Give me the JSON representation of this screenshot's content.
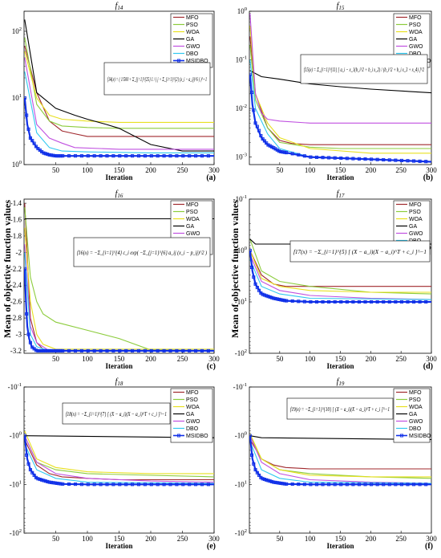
{
  "figure": {
    "ylabel": "Mean of objective function values",
    "xlabel": "Iteration",
    "algorithms": [
      "MFO",
      "PSO",
      "WOA",
      "GA",
      "GWO",
      "DBO",
      "MSIDBO"
    ],
    "colors": {
      "MFO": "#a0282d",
      "PSO": "#8ccc3c",
      "WOA": "#e8e020",
      "GA": "#000000",
      "GWO": "#c050e0",
      "DBO": "#30c8f0",
      "MSIDBO": "#1030e8"
    }
  },
  "chart_data": [
    {
      "type": "line",
      "title": "f14",
      "panel_label": "(a)",
      "formula": "f14(x) = ( 1/500 + Σ_{j=1}^{25} 1 / ( j + Σ_{i=1}^{2} (x_i − a_ij)^6 ) )^−1",
      "yscale": "log",
      "xlim": [
        0,
        300
      ],
      "ylim": [
        1,
        200
      ],
      "x_ticks": [
        "50",
        "100",
        "150",
        "200",
        "250",
        "300"
      ],
      "y_ticks": [
        "10^0",
        "10^1",
        "10^2"
      ],
      "legend": "top-right",
      "series": [
        {
          "name": "MFO",
          "x": [
            1,
            20,
            40,
            60,
            80,
            100,
            300
          ],
          "y": [
            60,
            12,
            4.5,
            3.2,
            2.9,
            2.65,
            2.65
          ]
        },
        {
          "name": "PSO",
          "x": [
            1,
            20,
            40,
            60,
            100,
            150,
            300
          ],
          "y": [
            80,
            8,
            4.5,
            3.8,
            3.6,
            3.5,
            3.5
          ]
        },
        {
          "name": "WOA",
          "x": [
            1,
            20,
            40,
            60,
            100,
            150,
            300
          ],
          "y": [
            50,
            10,
            5.5,
            4.8,
            4.5,
            4.3,
            4.3
          ]
        },
        {
          "name": "GA",
          "x": [
            1,
            20,
            50,
            80,
            100,
            130,
            150,
            200,
            250,
            300
          ],
          "y": [
            150,
            12,
            7,
            5.5,
            4.8,
            4,
            3.5,
            2,
            1.6,
            1.6
          ]
        },
        {
          "name": "GWO",
          "x": [
            1,
            20,
            40,
            60,
            80,
            150,
            300
          ],
          "y": [
            40,
            4,
            2.5,
            2.1,
            1.8,
            1.7,
            1.7
          ]
        },
        {
          "name": "DBO",
          "x": [
            1,
            20,
            40,
            60,
            100,
            200,
            300
          ],
          "y": [
            25,
            3,
            1.8,
            1.6,
            1.55,
            1.5,
            1.5
          ]
        },
        {
          "name": "MSIDBO",
          "x": [
            1,
            5,
            10,
            20,
            30,
            40,
            50,
            300
          ],
          "y": [
            10,
            4,
            2.5,
            1.8,
            1.5,
            1.4,
            1.35,
            1.35
          ]
        }
      ]
    },
    {
      "type": "line",
      "title": "f15",
      "panel_label": "(b)",
      "formula": "f15(x) = Σ_{i=1}^{11} [ a_i − x_1(b_i^2 + b_i x_2) / (b_i^2 + b_i x_3 + x_4) ]^2",
      "yscale": "log",
      "xlim": [
        0,
        300
      ],
      "ylim": [
        0.0007,
        1
      ],
      "x_ticks": [
        "50",
        "100",
        "150",
        "200",
        "250",
        "300"
      ],
      "y_ticks": [
        "10^-3",
        "10^-2",
        "10^-1",
        "10^0"
      ],
      "legend": "top-right",
      "series": [
        {
          "name": "MFO",
          "x": [
            1,
            10,
            30,
            50,
            70,
            100,
            300
          ],
          "y": [
            0.3,
            0.02,
            0.004,
            0.0022,
            0.0019,
            0.0018,
            0.0018
          ]
        },
        {
          "name": "PSO",
          "x": [
            1,
            10,
            30,
            50,
            100,
            150,
            300
          ],
          "y": [
            0.2,
            0.015,
            0.004,
            0.002,
            0.0016,
            0.0015,
            0.0015
          ]
        },
        {
          "name": "WOA",
          "x": [
            1,
            10,
            30,
            50,
            100,
            200,
            300
          ],
          "y": [
            0.5,
            0.02,
            0.005,
            0.0025,
            0.0015,
            0.0012,
            0.0012
          ]
        },
        {
          "name": "GA",
          "x": [
            1,
            20,
            50,
            100,
            150,
            200,
            300
          ],
          "y": [
            0.06,
            0.045,
            0.04,
            0.032,
            0.028,
            0.025,
            0.021
          ]
        },
        {
          "name": "GWO",
          "x": [
            1,
            10,
            20,
            30,
            50,
            100,
            300
          ],
          "y": [
            0.9,
            0.02,
            0.008,
            0.006,
            0.0055,
            0.005,
            0.005
          ]
        },
        {
          "name": "DBO",
          "x": [
            1,
            10,
            30,
            50,
            100,
            200,
            300
          ],
          "y": [
            0.1,
            0.01,
            0.003,
            0.0015,
            0.001,
            0.0009,
            0.0008
          ]
        },
        {
          "name": "MSIDBO",
          "x": [
            1,
            5,
            10,
            20,
            30,
            50,
            100,
            200,
            300
          ],
          "y": [
            0.05,
            0.012,
            0.005,
            0.0025,
            0.0018,
            0.0013,
            0.001,
            0.0009,
            0.0008
          ]
        }
      ]
    },
    {
      "type": "line",
      "title": "f16",
      "panel_label": "(c)",
      "formula": "f16(x) = −Σ_{i=1}^{4} c_i exp( −Σ_{j=1}^{6} a_ij (x_i − p_ij)^2 )",
      "yscale": "linear",
      "xlim": [
        0,
        300
      ],
      "ylim": [
        -3.23,
        -1.35
      ],
      "x_ticks": [
        "50",
        "100",
        "150",
        "200",
        "250",
        "300"
      ],
      "y_ticks": [
        "-1.4",
        "-1.6",
        "-1.8",
        "-2",
        "-2.2",
        "-2.4",
        "-2.6",
        "-2.8",
        "-3",
        "-3.2"
      ],
      "legend": "top-right",
      "series": [
        {
          "name": "MFO",
          "x": [
            1,
            10,
            20,
            30,
            50,
            300
          ],
          "y": [
            -1.4,
            -2.8,
            -3.1,
            -3.18,
            -3.2,
            -3.2
          ]
        },
        {
          "name": "PSO",
          "x": [
            1,
            10,
            20,
            30,
            50,
            100,
            150,
            200,
            300
          ],
          "y": [
            -1.45,
            -2.3,
            -2.6,
            -2.75,
            -2.85,
            -2.95,
            -3.05,
            -3.19,
            -3.2
          ]
        },
        {
          "name": "WOA",
          "x": [
            1,
            10,
            20,
            30,
            50,
            300
          ],
          "y": [
            -1.7,
            -2.6,
            -3.0,
            -3.12,
            -3.18,
            -3.18
          ]
        },
        {
          "name": "GA",
          "x": [
            1,
            300
          ],
          "y": [
            -1.59,
            -1.59
          ]
        },
        {
          "name": "GWO",
          "x": [
            1,
            10,
            20,
            40,
            300
          ],
          "y": [
            -1.9,
            -2.9,
            -3.1,
            -3.2,
            -3.2
          ]
        },
        {
          "name": "DBO",
          "x": [
            1,
            10,
            20,
            40,
            300
          ],
          "y": [
            -2.0,
            -3.0,
            -3.15,
            -3.2,
            -3.2
          ]
        },
        {
          "name": "MSIDBO",
          "x": [
            1,
            3,
            5,
            8,
            12,
            20,
            300
          ],
          "y": [
            -2.2,
            -2.6,
            -2.9,
            -3.05,
            -3.15,
            -3.2,
            -3.2
          ]
        }
      ]
    },
    {
      "type": "line",
      "title": "f17",
      "panel_label": "(d)",
      "formula": "f17(x) = −Σ_{i=1}^{5} [ (X − a_i)(X − a_i)^T + c_i ]^−1",
      "yscale": "symlog",
      "xlim": [
        0,
        300
      ],
      "ylim": [
        -100,
        -0.1
      ],
      "x_ticks": [
        "50",
        "100",
        "150",
        "200",
        "250",
        "300"
      ],
      "y_ticks": [
        "-10^-1",
        "-10^0",
        "-10^1",
        "-10^2"
      ],
      "legend": "top-right",
      "series": [
        {
          "name": "MFO",
          "x": [
            1,
            20,
            40,
            60,
            100,
            300
          ],
          "y": [
            -1,
            -3,
            -4.5,
            -5,
            -5,
            -5
          ]
        },
        {
          "name": "PSO",
          "x": [
            1,
            20,
            50,
            100,
            200,
            300
          ],
          "y": [
            -0.6,
            -2.5,
            -4,
            -5,
            -6.5,
            -7
          ]
        },
        {
          "name": "WOA",
          "x": [
            1,
            20,
            50,
            100,
            200,
            300
          ],
          "y": [
            -1,
            -3.5,
            -5,
            -6,
            -6.5,
            -6.5
          ]
        },
        {
          "name": "GA",
          "x": [
            1,
            10,
            300
          ],
          "y": [
            -0.6,
            -0.75,
            -0.75
          ]
        },
        {
          "name": "GWO",
          "x": [
            1,
            20,
            50,
            100,
            200,
            300
          ],
          "y": [
            -1.2,
            -4,
            -6,
            -7.5,
            -8.5,
            -9
          ]
        },
        {
          "name": "DBO",
          "x": [
            1,
            20,
            50,
            100,
            300
          ],
          "y": [
            -1.5,
            -5,
            -7,
            -8.5,
            -9
          ]
        },
        {
          "name": "MSIDBO",
          "x": [
            1,
            5,
            10,
            20,
            40,
            60,
            100,
            300
          ],
          "y": [
            -1,
            -2.5,
            -4.5,
            -7,
            -8.5,
            -9.5,
            -10,
            -10
          ]
        }
      ]
    },
    {
      "type": "line",
      "title": "f18",
      "panel_label": "(e)",
      "formula": "f18(x) = −Σ_{i=1}^{7} [ (X − a_i)(X − a_i)^T + c_i ]^−1",
      "yscale": "symlog",
      "xlim": [
        0,
        300
      ],
      "ylim": [
        -100,
        -0.1
      ],
      "x_ticks": [
        "50",
        "100",
        "150",
        "200",
        "250",
        "300"
      ],
      "y_ticks": [
        "-10^-1",
        "-10^0",
        "-10^1",
        "-10^2"
      ],
      "legend": "top-right",
      "series": [
        {
          "name": "MFO",
          "x": [
            1,
            20,
            40,
            60,
            100,
            150,
            300
          ],
          "y": [
            -1.2,
            -4,
            -6,
            -7,
            -7.5,
            -8,
            -8
          ]
        },
        {
          "name": "PSO",
          "x": [
            1,
            20,
            50,
            100,
            200,
            300
          ],
          "y": [
            -1,
            -3.5,
            -5,
            -6,
            -6.5,
            -7
          ]
        },
        {
          "name": "WOA",
          "x": [
            1,
            20,
            50,
            100,
            200,
            300
          ],
          "y": [
            -0.8,
            -3,
            -4.5,
            -5.5,
            -6,
            -6
          ]
        },
        {
          "name": "GA",
          "x": [
            1,
            300
          ],
          "y": [
            -1.0,
            -1.1
          ]
        },
        {
          "name": "GWO",
          "x": [
            1,
            20,
            50,
            100,
            200,
            300
          ],
          "y": [
            -1,
            -3.5,
            -6,
            -7.5,
            -8.5,
            -9
          ]
        },
        {
          "name": "DBO",
          "x": [
            1,
            20,
            50,
            100,
            300
          ],
          "y": [
            -1.5,
            -5,
            -7.5,
            -9,
            -9.5
          ]
        },
        {
          "name": "MSIDBO",
          "x": [
            1,
            5,
            10,
            20,
            40,
            60,
            100,
            300
          ],
          "y": [
            -1,
            -3,
            -5,
            -7.5,
            -9,
            -9.8,
            -10,
            -10
          ]
        }
      ]
    },
    {
      "type": "line",
      "title": "f19",
      "panel_label": "(f)",
      "formula": "f19(x) = −Σ_{i=1}^{10} [ (X − a_i)(X − a_i)^T + c_i ]^−1",
      "yscale": "symlog",
      "xlim": [
        0,
        300
      ],
      "ylim": [
        -100,
        -0.1
      ],
      "x_ticks": [
        "50",
        "100",
        "150",
        "200",
        "250",
        "300"
      ],
      "y_ticks": [
        "-10^-1",
        "-10^0",
        "-10^1",
        "-10^2"
      ],
      "legend": "top-right",
      "series": [
        {
          "name": "MFO",
          "x": [
            1,
            20,
            40,
            60,
            100,
            300
          ],
          "y": [
            -1.2,
            -3,
            -4,
            -4.5,
            -4.8,
            -4.8
          ]
        },
        {
          "name": "PSO",
          "x": [
            1,
            20,
            50,
            100,
            200,
            300
          ],
          "y": [
            -1,
            -3,
            -5,
            -6,
            -7,
            -7.5
          ]
        },
        {
          "name": "WOA",
          "x": [
            1,
            20,
            50,
            100,
            200,
            300
          ],
          "y": [
            -0.9,
            -3,
            -5,
            -6.5,
            -7,
            -7
          ]
        },
        {
          "name": "GA",
          "x": [
            1,
            20,
            300
          ],
          "y": [
            -1.0,
            -1.1,
            -1.2
          ]
        },
        {
          "name": "GWO",
          "x": [
            1,
            20,
            50,
            100,
            200,
            300
          ],
          "y": [
            -1,
            -3.5,
            -6,
            -8,
            -9,
            -9.5
          ]
        },
        {
          "name": "DBO",
          "x": [
            1,
            20,
            50,
            100,
            300
          ],
          "y": [
            -1.3,
            -5,
            -7.5,
            -9,
            -9.5
          ]
        },
        {
          "name": "MSIDBO",
          "x": [
            1,
            5,
            10,
            20,
            40,
            60,
            100,
            300
          ],
          "y": [
            -1,
            -3,
            -5,
            -7.5,
            -9,
            -9.8,
            -10,
            -10
          ]
        }
      ]
    }
  ]
}
